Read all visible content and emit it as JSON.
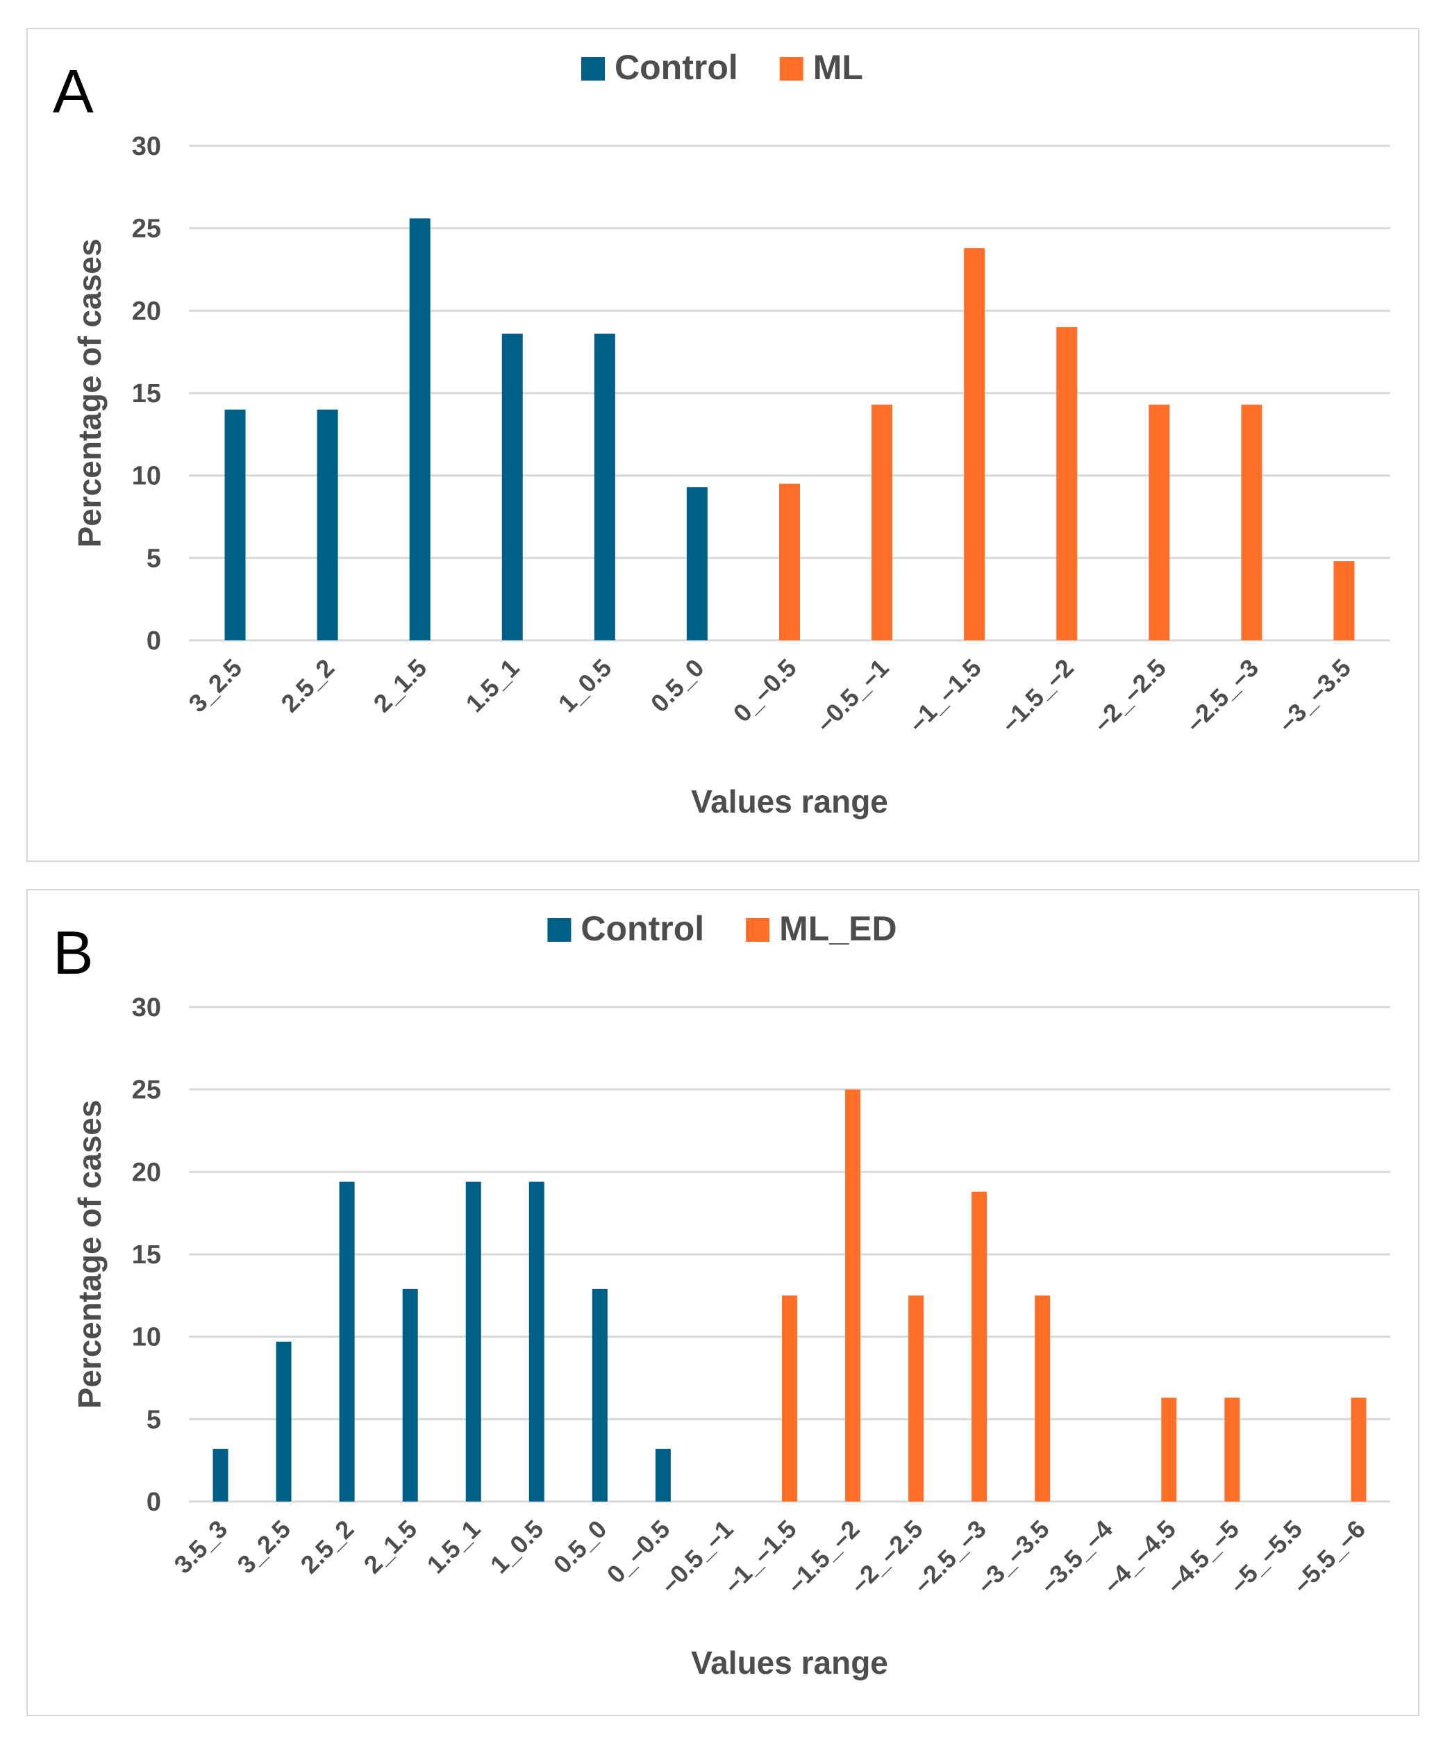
{
  "chart_data": [
    {
      "type": "bar",
      "panel_label": "A",
      "xlabel": "Values range",
      "ylabel": "Percentage of cases",
      "ylim": [
        0,
        30
      ],
      "yticks": [
        0,
        5,
        10,
        15,
        20,
        25,
        30
      ],
      "grid": true,
      "legend_position": "top-center",
      "categories": [
        "3_2.5",
        "2.5_2",
        "2_1.5",
        "1.5_1",
        "1_0.5",
        "0.5_0",
        "0_–0.5",
        "–0.5_–1",
        "–1_–1.5",
        "–1.5_–2",
        "–2_–2.5",
        "–2.5_–3",
        "–3_–3.5"
      ],
      "series": [
        {
          "name": "Control",
          "color": "#005f86",
          "values": [
            14,
            14,
            25.6,
            18.6,
            18.6,
            9.3,
            null,
            null,
            null,
            null,
            null,
            null,
            null
          ]
        },
        {
          "name": "ML",
          "color": "#ff6f27",
          "values": [
            null,
            null,
            null,
            null,
            null,
            null,
            9.5,
            14.3,
            23.8,
            19,
            14.3,
            14.3,
            4.8
          ]
        }
      ]
    },
    {
      "type": "bar",
      "panel_label": "B",
      "xlabel": "Values range",
      "ylabel": "Percentage of cases",
      "ylim": [
        0,
        30
      ],
      "yticks": [
        0,
        5,
        10,
        15,
        20,
        25,
        30
      ],
      "grid": true,
      "legend_position": "top-center",
      "categories": [
        "3.5_3",
        "3_2.5",
        "2.5_2",
        "2_1.5",
        "1.5_1",
        "1_0.5",
        "0.5_0",
        "0_–0.5",
        "–0.5_–1",
        "–1_–1.5",
        "–1.5_–2",
        "–2_–2.5",
        "–2.5_–3",
        "–3_–3.5",
        "–3.5_–4",
        "–4_–4.5",
        "–4.5_–5",
        "–5_–5.5",
        "–5.5_–6"
      ],
      "series": [
        {
          "name": "Control",
          "color": "#005f86",
          "values": [
            3.2,
            9.7,
            19.4,
            12.9,
            19.4,
            19.4,
            12.9,
            3.2,
            null,
            null,
            null,
            null,
            null,
            null,
            null,
            null,
            null,
            null,
            null
          ]
        },
        {
          "name": "ML_ED",
          "color": "#ff6f27",
          "values": [
            null,
            null,
            null,
            null,
            null,
            null,
            null,
            null,
            null,
            12.5,
            25,
            12.5,
            18.8,
            12.5,
            null,
            6.3,
            6.3,
            null,
            6.3
          ]
        }
      ]
    }
  ]
}
